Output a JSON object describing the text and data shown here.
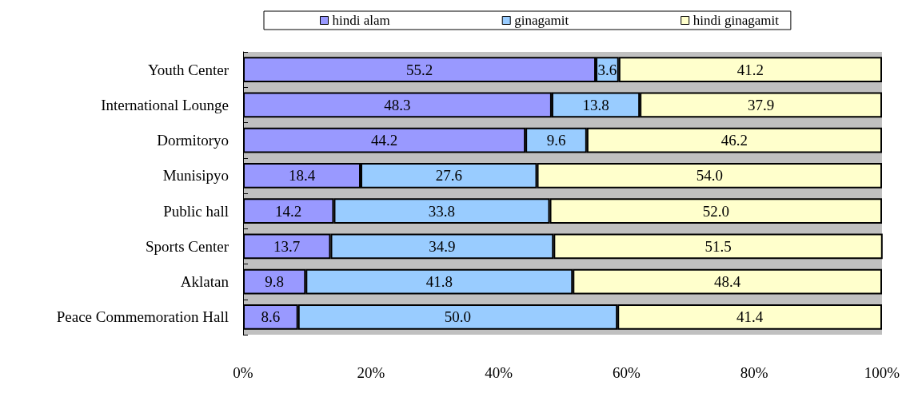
{
  "chart_data": {
    "type": "bar",
    "orientation": "horizontal",
    "stacked": true,
    "categories": [
      "Youth Center",
      "International Lounge",
      "Dormitoryo",
      "Munisipyo",
      "Public hall",
      "Sports Center",
      "Aklatan",
      "Peace Commemoration Hall"
    ],
    "series": [
      {
        "name": "hindi alam",
        "color": "#9999ff",
        "values": [
          55.2,
          48.3,
          44.2,
          18.4,
          14.2,
          13.7,
          9.8,
          8.6
        ],
        "value_labels": [
          "55.2",
          "48.3",
          "44.2",
          "18.4",
          "14.2",
          "13.7",
          "9.8",
          "8.6"
        ]
      },
      {
        "name": "ginagamit",
        "color": "#99ccff",
        "values": [
          3.6,
          13.8,
          9.6,
          27.6,
          33.8,
          34.9,
          41.8,
          50.0
        ],
        "value_labels": [
          "3.6",
          "13.8",
          "9.6",
          "27.6",
          "33.8",
          "34.9",
          "41.8",
          "50.0"
        ]
      },
      {
        "name": "hindi ginagamit",
        "color": "#ffffcc",
        "values": [
          41.2,
          37.9,
          46.2,
          54.0,
          52.0,
          51.5,
          48.4,
          41.4
        ],
        "value_labels": [
          "41.2",
          "37.9",
          "46.2",
          "54.0",
          "52.0",
          "51.5",
          "48.4",
          "41.4"
        ]
      }
    ],
    "xlim": [
      0,
      100
    ],
    "xticks": [
      {
        "value": 0,
        "label": "0%"
      },
      {
        "value": 20,
        "label": "20%"
      },
      {
        "value": 40,
        "label": "40%"
      },
      {
        "value": 60,
        "label": "60%"
      },
      {
        "value": 80,
        "label": "80%"
      },
      {
        "value": 100,
        "label": "100%"
      }
    ],
    "grid": false,
    "legend": "top"
  }
}
